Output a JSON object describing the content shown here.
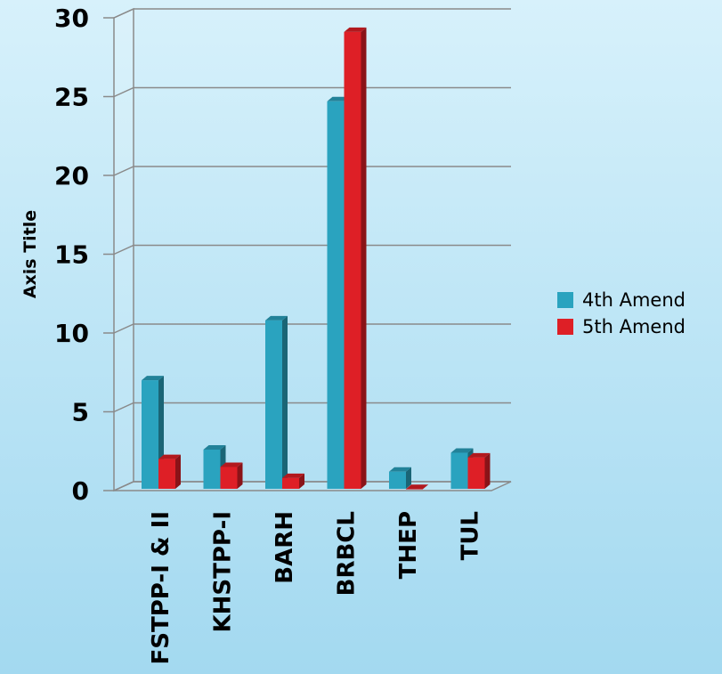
{
  "chart_data": {
    "type": "bar",
    "ylabel": "Axis Title",
    "xlabel": "",
    "ylim": [
      0,
      30
    ],
    "y_ticks": [
      "0",
      "5",
      "10",
      "15",
      "20",
      "25",
      "30"
    ],
    "grid": true,
    "legend_position": "right",
    "categories": [
      "FSTPP-I & II",
      "KHSTPP-I",
      "BARH",
      "BRBCL",
      "THEP",
      "TUL"
    ],
    "series": [
      {
        "name": "4th Amend",
        "color": "#2aa3bf",
        "values": [
          7.0,
          2.6,
          10.8,
          24.7,
          1.2,
          2.4
        ]
      },
      {
        "name": "5th Amend",
        "color": "#de1f26",
        "values": [
          2.0,
          1.5,
          0.8,
          29.1,
          0.1,
          2.1
        ]
      }
    ]
  }
}
